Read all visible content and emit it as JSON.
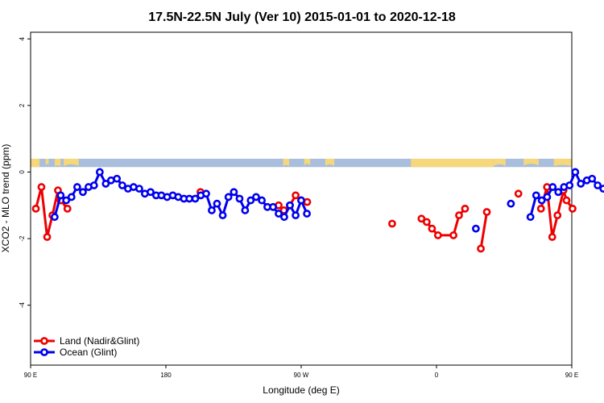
{
  "chart_data": {
    "type": "line",
    "title": "17.5N-22.5N July (Ver 10)   2015-01-01 to 2020-12-18",
    "xlabel": "Longitude (deg E)",
    "ylabel": "XCO2 - MLO trend (ppm)",
    "xlim": [
      90,
      450
    ],
    "ylim": [
      -5.8,
      4.2
    ],
    "x_ticks": [
      {
        "value": 90,
        "label": "90 E"
      },
      {
        "value": 180,
        "label": "180"
      },
      {
        "value": 270,
        "label": "90 W"
      },
      {
        "value": 360,
        "label": "0"
      },
      {
        "value": 450,
        "label": "90 E"
      },
      {
        "value": 540,
        "label": "180"
      }
    ],
    "y_ticks": [
      {
        "value": 4,
        "label": "4"
      },
      {
        "value": 2,
        "label": "2"
      },
      {
        "value": 0,
        "label": "0"
      },
      {
        "value": -2,
        "label": "-2"
      },
      {
        "value": -4,
        "label": "-4"
      }
    ],
    "land_mask_strip": {
      "y_range": [
        0.15,
        0.4
      ],
      "land_color": "#f6d77a",
      "ocean_color": "#a8bedc"
    },
    "legend": {
      "position": "bottom-left"
    },
    "series": [
      {
        "name": "Land (Nadir&Glint)",
        "color": "#ee0000",
        "segments": [
          [
            [
              93.5,
              -1.1
            ],
            [
              97.2,
              -0.45
            ],
            [
              101,
              -1.95
            ],
            [
              104.5,
              -1.3
            ],
            [
              108.2,
              -0.55
            ],
            [
              110,
              -0.85
            ],
            [
              114.5,
              -1.1
            ]
          ],
          [
            [
              203,
              -0.6
            ]
          ],
          [
            [
              255,
              -1.0
            ],
            [
              258.5,
              -1.15
            ],
            [
              262.5,
              -1.0
            ],
            [
              266.3,
              -0.7
            ],
            [
              270,
              -0.85
            ],
            [
              274,
              -0.9
            ]
          ],
          [
            [
              330.5,
              -1.55
            ]
          ],
          [
            [
              350,
              -1.4
            ],
            [
              353.5,
              -1.5
            ],
            [
              357,
              -1.7
            ],
            [
              361,
              -1.9
            ],
            [
              371.3,
              -1.9
            ],
            [
              375,
              -1.3
            ],
            [
              379,
              -1.1
            ]
          ],
          [
            [
              389.5,
              -2.3
            ],
            [
              393.5,
              -1.2
            ]
          ],
          [
            [
              414.5,
              -0.65
            ]
          ],
          [
            [
              429.5,
              -1.1
            ],
            [
              433.5,
              -0.45
            ],
            [
              437,
              -1.95
            ],
            [
              440.5,
              -1.3
            ],
            [
              444.5,
              -0.55
            ],
            [
              446.5,
              -0.85
            ],
            [
              450.5,
              -1.1
            ]
          ]
        ]
      },
      {
        "name": "Ocean (Glint)",
        "color": "#0000ee",
        "segments": [
          [
            [
              106,
              -1.35
            ],
            [
              110,
              -0.7
            ],
            [
              113.7,
              -0.85
            ],
            [
              117.2,
              -0.75
            ],
            [
              121,
              -0.45
            ],
            [
              124.8,
              -0.6
            ],
            [
              128.5,
              -0.45
            ],
            [
              132.2,
              -0.4
            ],
            [
              136,
              0.0
            ],
            [
              140,
              -0.35
            ],
            [
              143.5,
              -0.25
            ],
            [
              147.4,
              -0.2
            ],
            [
              151,
              -0.4
            ],
            [
              154.8,
              -0.5
            ],
            [
              158.5,
              -0.45
            ],
            [
              162.3,
              -0.5
            ],
            [
              166,
              -0.65
            ],
            [
              169.8,
              -0.6
            ],
            [
              173.5,
              -0.7
            ],
            [
              177,
              -0.7
            ],
            [
              180.8,
              -0.75
            ],
            [
              184.6,
              -0.7
            ],
            [
              188.2,
              -0.75
            ],
            [
              192,
              -0.8
            ],
            [
              195.6,
              -0.8
            ],
            [
              199.5,
              -0.8
            ],
            [
              203.2,
              -0.7
            ],
            [
              206.8,
              -0.65
            ],
            [
              210.5,
              -1.15
            ],
            [
              214,
              -0.95
            ],
            [
              217.8,
              -1.3
            ],
            [
              221.6,
              -0.75
            ],
            [
              225.2,
              -0.6
            ],
            [
              229,
              -0.8
            ],
            [
              232.7,
              -1.15
            ],
            [
              236.4,
              -0.85
            ],
            [
              240,
              -0.75
            ],
            [
              243.8,
              -0.85
            ],
            [
              247.5,
              -1.05
            ],
            [
              251.3,
              -1.05
            ],
            [
              255,
              -1.25
            ],
            [
              258.7,
              -1.35
            ],
            [
              262.5,
              -1.0
            ],
            [
              266.3,
              -1.3
            ],
            [
              270,
              -0.85
            ],
            [
              273.8,
              -1.25
            ]
          ],
          [
            [
              386.2,
              -1.7
            ]
          ],
          [
            [
              409.5,
              -0.95
            ]
          ],
          [
            [
              422.5,
              -1.35
            ],
            [
              426.3,
              -0.7
            ],
            [
              430,
              -0.85
            ],
            [
              433.6,
              -0.75
            ],
            [
              437.3,
              -0.45
            ],
            [
              441,
              -0.6
            ],
            [
              444.8,
              -0.45
            ],
            [
              448.5,
              -0.4
            ],
            [
              452.3,
              0.0
            ],
            [
              456,
              -0.35
            ]
          ],
          [
            [
              460,
              -0.25
            ],
            [
              463.5,
              -0.2
            ],
            [
              467.2,
              -0.4
            ],
            [
              471,
              -0.5
            ],
            [
              474.7,
              -0.45
            ]
          ]
        ]
      }
    ]
  }
}
